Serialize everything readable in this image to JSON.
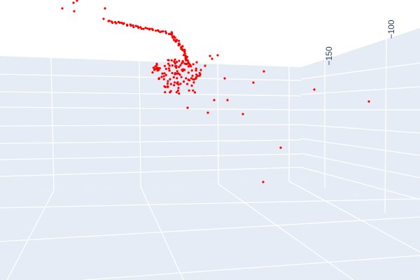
{
  "chart_data": {
    "type": "scatter",
    "dimensions": "3d",
    "title": "",
    "marker_color": "#ff0000",
    "background_color": "#ffffff",
    "wall_color": "#e5ecf6",
    "grid_color": "#ffffff",
    "tick_color": "#2a3f5f",
    "grid": true,
    "legend": false,
    "axis_tick_labels": [
      "−150",
      "−100"
    ],
    "points": []
  }
}
